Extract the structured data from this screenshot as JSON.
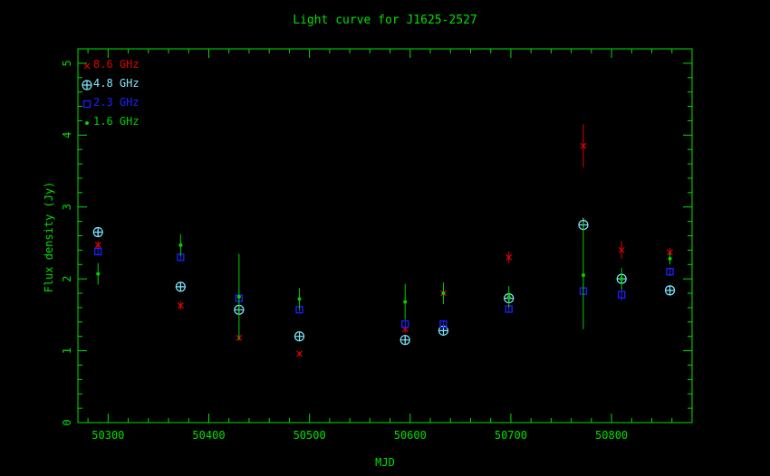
{
  "chart_data": {
    "type": "scatter",
    "title": "Light curve for J1625-2527",
    "xlabel": "MJD",
    "ylabel": "Flux density (Jy)",
    "xlim": [
      50270,
      50880
    ],
    "ylim": [
      0,
      5.2
    ],
    "xticks": [
      50300,
      50400,
      50500,
      50600,
      50700,
      50800
    ],
    "yticks": [
      0,
      1,
      2,
      3,
      4,
      5
    ],
    "legend_position": "top-left",
    "series": [
      {
        "name": "8.6 GHz",
        "color": "#e00000",
        "marker": "x",
        "x": [
          50290,
          50372,
          50430,
          50490,
          50595,
          50633,
          50698,
          50772,
          50810,
          50858
        ],
        "y": [
          2.47,
          1.63,
          1.18,
          0.96,
          1.3,
          1.8,
          2.3,
          3.85,
          2.4,
          2.37
        ],
        "err": [
          0.06,
          0.06,
          0.04,
          0.03,
          0.06,
          0.08,
          0.08,
          0.3,
          0.12,
          0.06
        ]
      },
      {
        "name": "4.8 GHz",
        "color": "#7fe8ff",
        "marker": "circle-plus",
        "x": [
          50290,
          50372,
          50430,
          50490,
          50595,
          50633,
          50698,
          50772,
          50810,
          50858
        ],
        "y": [
          2.65,
          1.89,
          1.57,
          1.2,
          1.15,
          1.28,
          1.73,
          2.75,
          2.0,
          1.84
        ],
        "err": [
          0.04,
          0.04,
          0.05,
          0.04,
          0.04,
          0.04,
          0.05,
          0.1,
          0.07,
          0.04
        ]
      },
      {
        "name": "2.3 GHz",
        "color": "#2020ff",
        "marker": "square",
        "x": [
          50290,
          50372,
          50430,
          50490,
          50595,
          50633,
          50698,
          50772,
          50810,
          50858
        ],
        "y": [
          2.38,
          2.3,
          1.73,
          1.57,
          1.37,
          1.37,
          1.58,
          1.83,
          1.78,
          2.1
        ],
        "err": [
          0.05,
          0.05,
          0.06,
          0.05,
          0.05,
          0.05,
          0.05,
          0.08,
          0.08,
          0.06
        ]
      },
      {
        "name": "1.6 GHz",
        "color": "#00d000",
        "marker": "dot",
        "x": [
          50290,
          50372,
          50430,
          50490,
          50595,
          50633,
          50698,
          50772,
          50810,
          50858
        ],
        "y": [
          2.07,
          2.47,
          1.75,
          1.72,
          1.68,
          1.8,
          1.75,
          2.05,
          2.0,
          2.28
        ],
        "err": [
          0.15,
          0.15,
          0.6,
          0.15,
          0.25,
          0.15,
          0.15,
          0.75,
          0.15,
          0.08
        ]
      }
    ]
  }
}
